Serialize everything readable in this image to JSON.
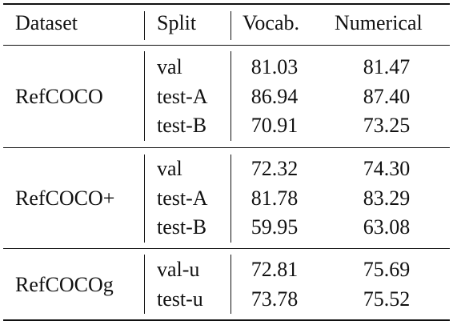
{
  "headers": {
    "dataset": "Dataset",
    "split": "Split",
    "vocab": "Vocab.",
    "numerical": "Numerical"
  },
  "groups": [
    {
      "dataset": "RefCOCO",
      "rows": [
        {
          "split": "val",
          "vocab": "81.03",
          "numerical": "81.47"
        },
        {
          "split": "test-A",
          "vocab": "86.94",
          "numerical": "87.40"
        },
        {
          "split": "test-B",
          "vocab": "70.91",
          "numerical": "73.25"
        }
      ]
    },
    {
      "dataset": "RefCOCO+",
      "rows": [
        {
          "split": "val",
          "vocab": "72.32",
          "numerical": "74.30"
        },
        {
          "split": "test-A",
          "vocab": "81.78",
          "numerical": "83.29"
        },
        {
          "split": "test-B",
          "vocab": "59.95",
          "numerical": "63.08"
        }
      ]
    },
    {
      "dataset": "RefCOCOg",
      "rows": [
        {
          "split": "val-u",
          "vocab": "72.81",
          "numerical": "75.69"
        },
        {
          "split": "test-u",
          "vocab": "73.78",
          "numerical": "75.52"
        }
      ]
    }
  ]
}
